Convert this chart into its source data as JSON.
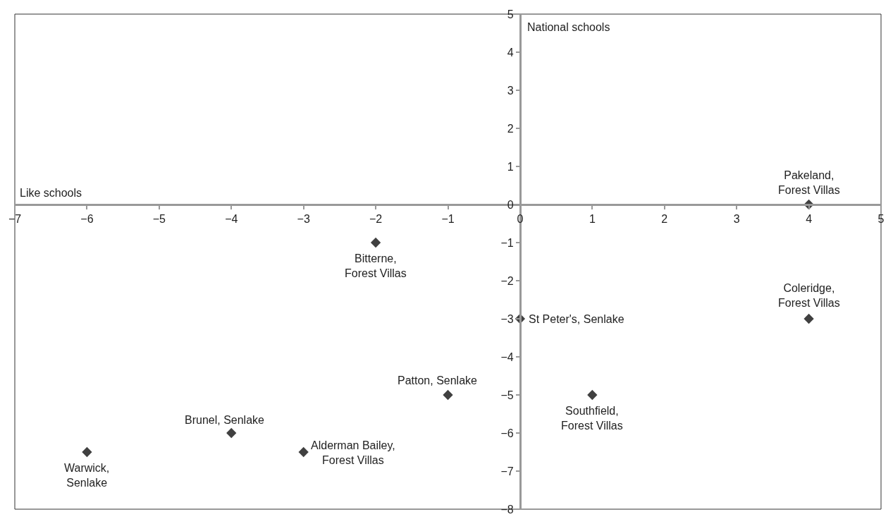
{
  "chart_data": {
    "type": "scatter",
    "xlabel": "Like schools",
    "ylabel": "National schools",
    "x": [
      4,
      -2,
      4,
      0,
      -1,
      1,
      -4,
      -3,
      -6
    ],
    "values": [
      0,
      -1,
      -3,
      -3,
      -5,
      -5,
      -6,
      -6.5,
      -6.5
    ],
    "color": "#404040",
    "marker": "diamond",
    "grid": false,
    "legend": false,
    "xlim": [
      -7,
      5
    ],
    "ylim": [
      -8,
      5
    ],
    "xticks": [
      {
        "value": -7,
        "label": "−7"
      },
      {
        "value": -6,
        "label": "−6"
      },
      {
        "value": -5,
        "label": "−5"
      },
      {
        "value": -4,
        "label": "−4"
      },
      {
        "value": -3,
        "label": "−3"
      },
      {
        "value": -2,
        "label": "−2"
      },
      {
        "value": -1,
        "label": "−1"
      },
      0,
      1,
      2,
      3,
      4,
      5
    ],
    "yticks": [
      {
        "value": -8,
        "label": "−8"
      },
      {
        "value": -7,
        "label": "−7"
      },
      {
        "value": -6,
        "label": "−6"
      },
      {
        "value": -5,
        "label": "−5"
      },
      {
        "value": -4,
        "label": "−4"
      },
      {
        "value": -3,
        "label": "−3"
      },
      {
        "value": -2,
        "label": "−2"
      },
      {
        "value": -1,
        "label": "−1"
      },
      0,
      1,
      2,
      3,
      4,
      5
    ],
    "annotations": [
      {
        "text": "Pakeland,\nForest Villas",
        "x": 4,
        "y": 0
      },
      {
        "text": "Bitterne,\nForest Villas",
        "x": -2,
        "y": -1
      },
      {
        "text": "Coleridge,\nForest Villas",
        "x": 4,
        "y": -3
      },
      {
        "text": "St Peter's, Senlake",
        "x": 0,
        "y": -3
      },
      {
        "text": "Patton, Senlake",
        "x": -1,
        "y": -5
      },
      {
        "text": "Southfield,\nForest Villas",
        "x": 1,
        "y": -5
      },
      {
        "text": "Brunel, Senlake",
        "x": -4,
        "y": -6
      },
      {
        "text": "Alderman Bailey,\nForest Villas",
        "x": -3,
        "y": -6.5
      },
      {
        "text": "Warwick,\nSenlake",
        "x": -6,
        "y": -6.5
      }
    ]
  }
}
